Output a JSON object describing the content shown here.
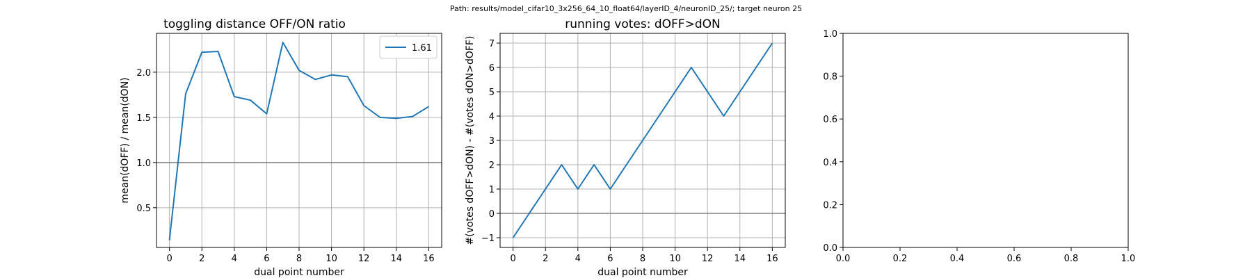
{
  "suptitle": "Path: results/model_cifar10_3x256_64_10_float64/layerID_4/neuronID_25/; target neuron 25",
  "chart_data": [
    {
      "type": "line",
      "title": "toggling distance OFF/ON ratio",
      "xlabel": "dual point number",
      "ylabel": "mean(dOFF) / mean(dON)",
      "xlim": [
        -0.8,
        16.8
      ],
      "ylim": [
        0.06,
        2.43
      ],
      "xticks": [
        0,
        2,
        4,
        6,
        8,
        10,
        12,
        14,
        16
      ],
      "yticks": [
        0.5,
        1.0,
        1.5,
        2.0
      ],
      "ytick_labels": [
        "0.5",
        "1.0",
        "1.5",
        "2.0"
      ],
      "grid": true,
      "reference_line": 1.0,
      "legend": {
        "position": "top-right",
        "entries": [
          "1.61"
        ]
      },
      "series": [
        {
          "name": "1.61",
          "color": "#1f77b4",
          "x": [
            0,
            1,
            2,
            3,
            4,
            5,
            6,
            7,
            8,
            9,
            10,
            11,
            12,
            13,
            14,
            15,
            16
          ],
          "y": [
            0.14,
            1.76,
            2.22,
            2.23,
            1.73,
            1.69,
            1.54,
            2.33,
            2.02,
            1.92,
            1.97,
            1.95,
            1.63,
            1.5,
            1.49,
            1.51,
            1.62
          ]
        }
      ]
    },
    {
      "type": "line",
      "title": "running votes: dOFF>dON",
      "xlabel": "dual point number",
      "ylabel": "#(votes dOFF>dON) - #(votes dON>dOFF)",
      "xlim": [
        -0.8,
        16.8
      ],
      "ylim": [
        -1.4,
        7.4
      ],
      "xticks": [
        0,
        2,
        4,
        6,
        8,
        10,
        12,
        14,
        16
      ],
      "yticks": [
        -1,
        0,
        1,
        2,
        3,
        4,
        5,
        6,
        7
      ],
      "ytick_labels": [
        "−1",
        "0",
        "1",
        "2",
        "3",
        "4",
        "5",
        "6",
        "7"
      ],
      "grid": true,
      "reference_line": 0,
      "series": [
        {
          "color": "#1f77b4",
          "x": [
            0,
            1,
            2,
            3,
            4,
            5,
            6,
            7,
            8,
            9,
            10,
            11,
            12,
            13,
            14,
            15,
            16
          ],
          "y": [
            -1,
            0,
            1,
            2,
            1,
            2,
            1,
            2,
            3,
            4,
            5,
            6,
            5,
            4,
            5,
            6,
            7
          ]
        }
      ]
    },
    {
      "type": "line",
      "title": "",
      "xlabel": "",
      "ylabel": "",
      "xlim": [
        0,
        1
      ],
      "ylim": [
        0,
        1
      ],
      "xticks": [
        0,
        0.2,
        0.4,
        0.6,
        0.8,
        1.0
      ],
      "yticks": [
        0,
        0.2,
        0.4,
        0.6,
        0.8,
        1.0
      ],
      "xtick_labels": [
        "0.0",
        "0.2",
        "0.4",
        "0.6",
        "0.8",
        "1.0"
      ],
      "ytick_labels": [
        "0.0",
        "0.2",
        "0.4",
        "0.6",
        "0.8",
        "1.0"
      ],
      "grid": false,
      "series": []
    }
  ]
}
